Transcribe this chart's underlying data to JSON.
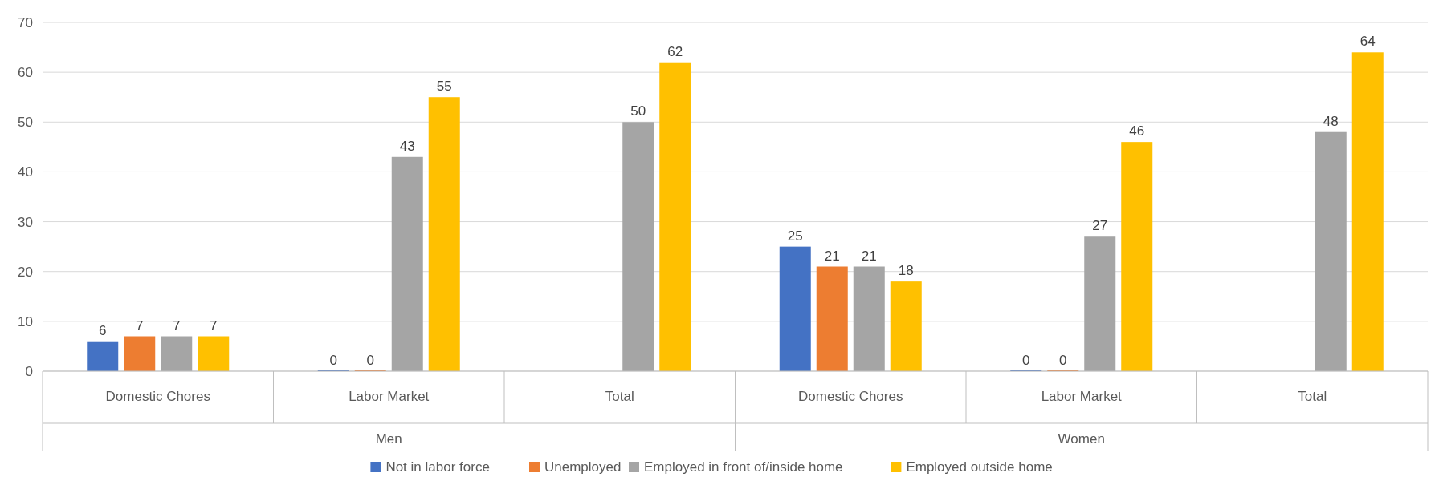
{
  "chart_data": {
    "type": "bar",
    "categories": [
      "Domestic Chores",
      "Labor Market",
      "Total",
      "Domestic Chores",
      "Labor Market",
      "Total"
    ],
    "annotations": [
      "Men",
      "Women"
    ],
    "series": [
      {
        "name": "Not in labor force",
        "color": "#4472c4",
        "values": [
          6,
          0,
          null,
          25,
          0,
          null
        ]
      },
      {
        "name": "Unemployed",
        "color": "#ed7d31",
        "values": [
          7,
          0,
          null,
          21,
          0,
          null
        ]
      },
      {
        "name": "Employed in front of/inside home",
        "color": "#a5a5a5",
        "values": [
          7,
          43,
          50,
          21,
          27,
          48
        ]
      },
      {
        "name": "Employed outside home",
        "color": "#ffc000",
        "values": [
          7,
          55,
          62,
          18,
          46,
          64
        ]
      }
    ],
    "ylim": [
      0,
      70
    ],
    "yticks": [
      0,
      10,
      20,
      30,
      40,
      50,
      60,
      70
    ],
    "grid": "y",
    "data_labels": true,
    "legend": "bottom"
  }
}
